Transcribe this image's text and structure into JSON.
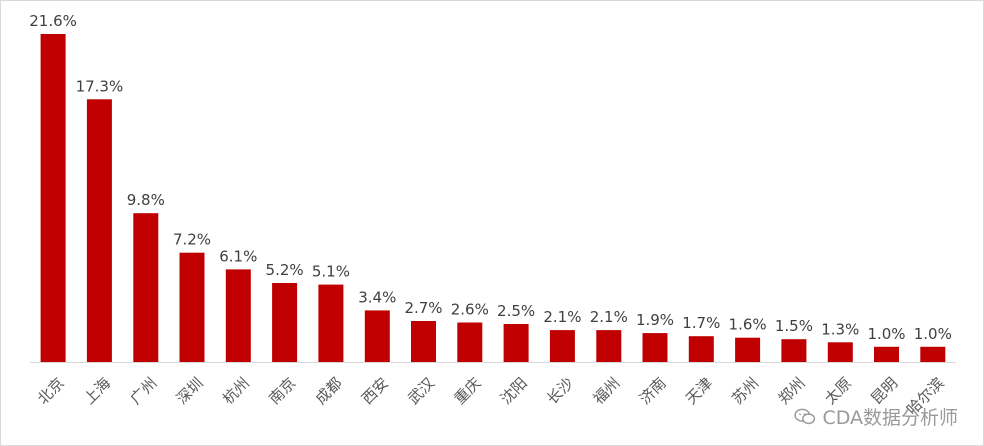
{
  "chart_data": {
    "type": "bar",
    "categories": [
      "北京",
      "上海",
      "广州",
      "深圳",
      "杭州",
      "南京",
      "成都",
      "西安",
      "武汉",
      "重庆",
      "沈阳",
      "长沙",
      "福州",
      "济南",
      "天津",
      "苏州",
      "郑州",
      "太原",
      "昆明",
      "哈尔滨"
    ],
    "values": [
      21.6,
      17.3,
      9.8,
      7.2,
      6.1,
      5.2,
      5.1,
      3.4,
      2.7,
      2.6,
      2.5,
      2.1,
      2.1,
      1.9,
      1.7,
      1.6,
      1.5,
      1.3,
      1.0,
      1.0
    ],
    "value_labels": [
      "21.6%",
      "17.3%",
      "9.8%",
      "7.2%",
      "6.1%",
      "5.2%",
      "5.1%",
      "3.4%",
      "2.7%",
      "2.6%",
      "2.5%",
      "2.1%",
      "2.1%",
      "1.9%",
      "1.7%",
      "1.6%",
      "1.5%",
      "1.3%",
      "1.0%",
      "1.0%"
    ],
    "ylim": [
      0,
      21.6
    ],
    "grid": false,
    "legend": "none",
    "bar_color": "#c00000"
  },
  "watermark": {
    "text": "CDA数据分析师",
    "icon": "wechat-icon"
  }
}
